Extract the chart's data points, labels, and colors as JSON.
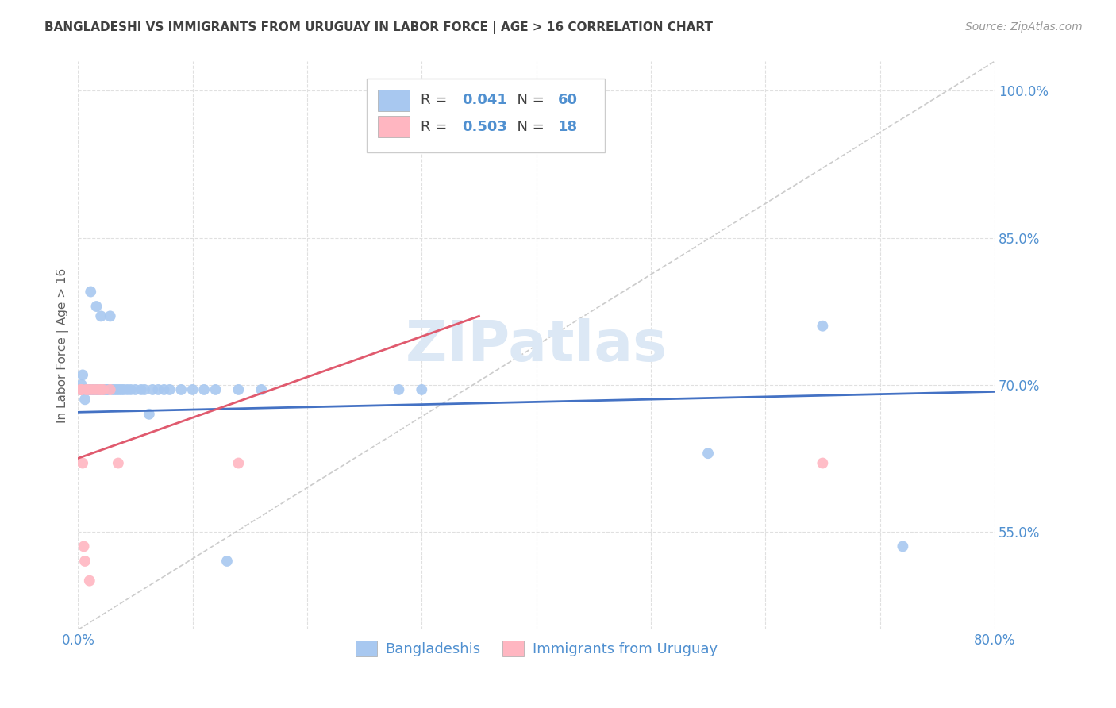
{
  "title": "BANGLADESHI VS IMMIGRANTS FROM URUGUAY IN LABOR FORCE | AGE > 16 CORRELATION CHART",
  "source": "Source: ZipAtlas.com",
  "ylabel": "In Labor Force | Age > 16",
  "xlim": [
    0.0,
    0.8
  ],
  "ylim": [
    0.45,
    1.03
  ],
  "x_ticks": [
    0.0,
    0.1,
    0.2,
    0.3,
    0.4,
    0.5,
    0.6,
    0.7,
    0.8
  ],
  "x_tick_labels": [
    "0.0%",
    "",
    "",
    "",
    "",
    "",
    "",
    "",
    "80.0%"
  ],
  "y_ticks": [
    0.55,
    0.7,
    0.85,
    1.0
  ],
  "y_tick_labels": [
    "55.0%",
    "70.0%",
    "85.0%",
    "100.0%"
  ],
  "blue_R": "0.041",
  "blue_N": "60",
  "pink_R": "0.503",
  "pink_N": "18",
  "blue_scatter_x": [
    0.002,
    0.003,
    0.004,
    0.004,
    0.005,
    0.005,
    0.006,
    0.006,
    0.007,
    0.007,
    0.008,
    0.008,
    0.009,
    0.009,
    0.01,
    0.01,
    0.011,
    0.012,
    0.013,
    0.013,
    0.015,
    0.015,
    0.016,
    0.017,
    0.018,
    0.019,
    0.02,
    0.022,
    0.023,
    0.025,
    0.026,
    0.028,
    0.03,
    0.032,
    0.034,
    0.036,
    0.038,
    0.04,
    0.043,
    0.046,
    0.05,
    0.055,
    0.058,
    0.062,
    0.065,
    0.07,
    0.075,
    0.08,
    0.09,
    0.1,
    0.11,
    0.12,
    0.13,
    0.14,
    0.16,
    0.28,
    0.3,
    0.55,
    0.65,
    0.72
  ],
  "blue_scatter_y": [
    0.695,
    0.7,
    0.695,
    0.71,
    0.695,
    0.695,
    0.685,
    0.695,
    0.695,
    0.695,
    0.695,
    0.695,
    0.695,
    0.695,
    0.695,
    0.695,
    0.795,
    0.695,
    0.695,
    0.695,
    0.695,
    0.695,
    0.78,
    0.695,
    0.695,
    0.695,
    0.77,
    0.695,
    0.695,
    0.695,
    0.695,
    0.77,
    0.695,
    0.695,
    0.695,
    0.695,
    0.695,
    0.695,
    0.695,
    0.695,
    0.695,
    0.695,
    0.695,
    0.67,
    0.695,
    0.695,
    0.695,
    0.695,
    0.695,
    0.695,
    0.695,
    0.695,
    0.52,
    0.695,
    0.695,
    0.695,
    0.695,
    0.63,
    0.76,
    0.535
  ],
  "pink_scatter_x": [
    0.002,
    0.003,
    0.003,
    0.004,
    0.005,
    0.006,
    0.007,
    0.009,
    0.01,
    0.012,
    0.015,
    0.018,
    0.02,
    0.022,
    0.028,
    0.035,
    0.14,
    0.65
  ],
  "pink_scatter_y": [
    0.695,
    0.695,
    0.695,
    0.62,
    0.535,
    0.52,
    0.695,
    0.695,
    0.5,
    0.695,
    0.695,
    0.695,
    0.695,
    0.695,
    0.695,
    0.62,
    0.62,
    0.62
  ],
  "blue_line_x": [
    0.0,
    0.8
  ],
  "blue_line_y": [
    0.672,
    0.693
  ],
  "pink_line_x": [
    0.0,
    0.35
  ],
  "pink_line_y": [
    0.625,
    0.77
  ],
  "diagonal_line_x": [
    0.0,
    0.8
  ],
  "diagonal_line_y": [
    0.45,
    1.03
  ],
  "blue_color": "#a8c8f0",
  "blue_line_color": "#4472c4",
  "pink_color": "#ffb6c1",
  "pink_line_color": "#e05a6e",
  "diagonal_color": "#cccccc",
  "watermark_color": "#dce8f5",
  "grid_color": "#e0e0e0",
  "title_color": "#404040",
  "axis_label_color": "#606060",
  "tick_color": "#5090d0",
  "legend_r_color": "#5090d0",
  "background_color": "#ffffff"
}
